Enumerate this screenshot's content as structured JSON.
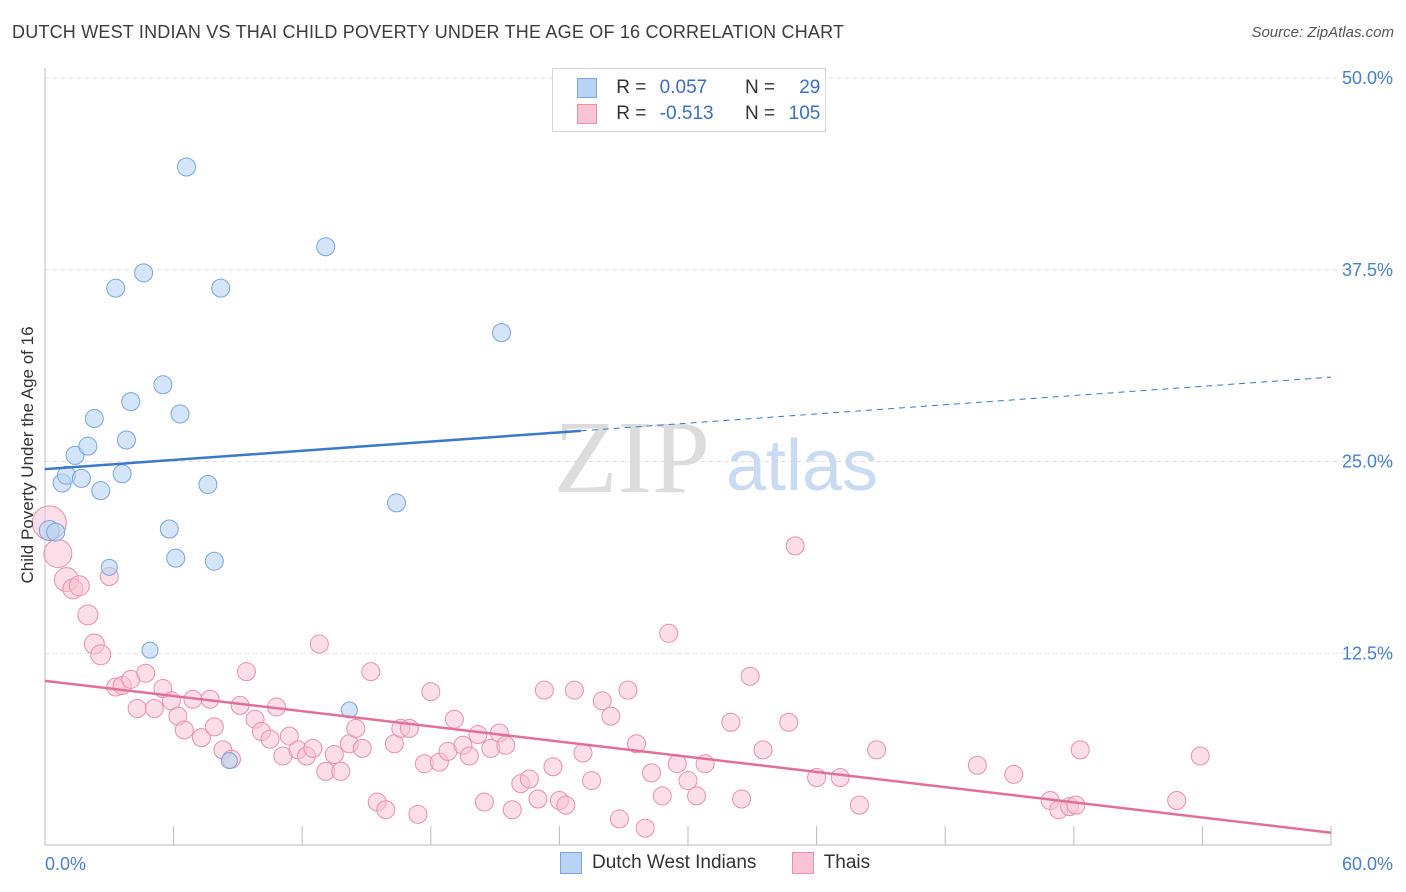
{
  "title": "DUTCH WEST INDIAN VS THAI CHILD POVERTY UNDER THE AGE OF 16 CORRELATION CHART",
  "source": "Source: ZipAtlas.com",
  "watermark": {
    "zip": "ZIP",
    "atlas": "atlas"
  },
  "colors": {
    "blue_fill": "#b8d3f3",
    "blue_stroke": "#7aa5dd",
    "blue_line": "#3a78cc",
    "pink_fill": "#f8c3d3",
    "pink_stroke": "#eb8fae",
    "pink_line": "#e0709a",
    "tick_label": "#4a7fcc",
    "grid": "#dddddd"
  },
  "legend": {
    "rows": [
      {
        "r_label": "R =",
        "r_value": "0.057",
        "n_label": "N =",
        "n_value": "29"
      },
      {
        "r_label": "R =",
        "r_value": "-0.513",
        "n_label": "N =",
        "n_value": "105"
      }
    ]
  },
  "bottom_legend": [
    "Dutch West Indians",
    "Thais"
  ],
  "chart_data": {
    "type": "scatter",
    "title": "DUTCH WEST INDIAN VS THAI CHILD POVERTY UNDER THE AGE OF 16 CORRELATION CHART",
    "xlabel": "",
    "ylabel": "Child Poverty Under the Age of 16",
    "xlim": [
      0,
      60
    ],
    "ylim": [
      0,
      50
    ],
    "x_tick_labels": [
      "0.0%",
      "60.0%"
    ],
    "y_ticks": [
      12.5,
      25.0,
      37.5,
      50.0
    ],
    "y_tick_labels": [
      "12.5%",
      "25.0%",
      "37.5%",
      "50.0%"
    ],
    "series": [
      {
        "name": "Dutch West Indians",
        "r": 0.057,
        "n": 29,
        "trend": {
          "x0": 0,
          "y0": 24.5,
          "x1": 25,
          "y1": 27.0,
          "dash_x1": 60,
          "dash_y1": 30.5
        },
        "points": [
          [
            0.2,
            20.5,
            10
          ],
          [
            0.5,
            20.4,
            9
          ],
          [
            0.8,
            23.6,
            9
          ],
          [
            1.0,
            24.1,
            9
          ],
          [
            1.4,
            25.4,
            9
          ],
          [
            1.7,
            23.9,
            9
          ],
          [
            2.0,
            26.0,
            9
          ],
          [
            2.3,
            27.8,
            9
          ],
          [
            2.6,
            23.1,
            9
          ],
          [
            3.0,
            18.1,
            8
          ],
          [
            3.3,
            36.3,
            9
          ],
          [
            3.6,
            24.2,
            9
          ],
          [
            3.8,
            26.4,
            9
          ],
          [
            4.0,
            28.9,
            9
          ],
          [
            4.6,
            37.3,
            9
          ],
          [
            4.9,
            12.7,
            8
          ],
          [
            5.5,
            30.0,
            9
          ],
          [
            5.8,
            20.6,
            9
          ],
          [
            6.1,
            18.7,
            9
          ],
          [
            6.3,
            28.1,
            9
          ],
          [
            6.6,
            44.2,
            9
          ],
          [
            7.6,
            23.5,
            9
          ],
          [
            7.9,
            18.5,
            9
          ],
          [
            8.2,
            36.3,
            9
          ],
          [
            8.6,
            5.5,
            8
          ],
          [
            13.1,
            39.0,
            9
          ],
          [
            14.2,
            8.8,
            8
          ],
          [
            16.4,
            22.3,
            9
          ],
          [
            21.3,
            33.4,
            9
          ]
        ]
      },
      {
        "name": "Thais",
        "r": -0.513,
        "n": 105,
        "trend": {
          "x0": 0,
          "y0": 10.7,
          "x1": 60,
          "y1": 0.8
        },
        "points": [
          [
            0.2,
            21.0,
            17
          ],
          [
            0.6,
            19.0,
            14
          ],
          [
            1.0,
            17.3,
            12
          ],
          [
            1.3,
            16.7,
            10
          ],
          [
            1.6,
            16.9,
            10
          ],
          [
            2.0,
            15.0,
            10
          ],
          [
            2.3,
            13.1,
            10
          ],
          [
            2.6,
            12.4,
            10
          ],
          [
            3.0,
            17.5,
            9
          ],
          [
            3.3,
            10.3,
            9
          ],
          [
            3.6,
            10.4,
            9
          ],
          [
            4.0,
            10.8,
            9
          ],
          [
            4.3,
            8.9,
            9
          ],
          [
            4.7,
            11.2,
            9
          ],
          [
            5.1,
            8.9,
            9
          ],
          [
            5.5,
            10.2,
            9
          ],
          [
            5.9,
            9.4,
            9
          ],
          [
            6.2,
            8.4,
            9
          ],
          [
            6.5,
            7.5,
            9
          ],
          [
            6.9,
            9.5,
            9
          ],
          [
            7.3,
            7.0,
            9
          ],
          [
            7.7,
            9.5,
            9
          ],
          [
            7.9,
            7.7,
            9
          ],
          [
            8.3,
            6.2,
            9
          ],
          [
            8.7,
            5.6,
            9
          ],
          [
            9.1,
            9.1,
            9
          ],
          [
            9.4,
            11.3,
            9
          ],
          [
            9.8,
            8.2,
            9
          ],
          [
            10.1,
            7.4,
            9
          ],
          [
            10.5,
            6.9,
            9
          ],
          [
            10.8,
            9.0,
            9
          ],
          [
            11.1,
            5.8,
            9
          ],
          [
            11.4,
            7.1,
            9
          ],
          [
            11.8,
            6.2,
            9
          ],
          [
            12.2,
            5.8,
            9
          ],
          [
            12.5,
            6.3,
            9
          ],
          [
            12.8,
            13.1,
            9
          ],
          [
            13.1,
            4.8,
            9
          ],
          [
            13.5,
            5.9,
            9
          ],
          [
            13.8,
            4.8,
            9
          ],
          [
            14.2,
            6.6,
            9
          ],
          [
            14.5,
            7.6,
            9
          ],
          [
            14.8,
            6.3,
            9
          ],
          [
            15.2,
            11.3,
            9
          ],
          [
            15.5,
            2.8,
            9
          ],
          [
            15.9,
            2.3,
            9
          ],
          [
            16.3,
            6.6,
            9
          ],
          [
            16.6,
            7.6,
            9
          ],
          [
            17.0,
            7.6,
            9
          ],
          [
            17.4,
            2.0,
            9
          ],
          [
            17.7,
            5.3,
            9
          ],
          [
            18.0,
            10.0,
            9
          ],
          [
            18.4,
            5.4,
            9
          ],
          [
            18.8,
            6.1,
            9
          ],
          [
            19.1,
            8.2,
            9
          ],
          [
            19.5,
            6.5,
            9
          ],
          [
            19.8,
            5.8,
            9
          ],
          [
            20.2,
            7.2,
            9
          ],
          [
            20.5,
            2.8,
            9
          ],
          [
            20.8,
            6.3,
            9
          ],
          [
            21.2,
            7.3,
            9
          ],
          [
            21.5,
            6.5,
            9
          ],
          [
            21.8,
            2.3,
            9
          ],
          [
            22.2,
            4.0,
            9
          ],
          [
            22.6,
            4.3,
            9
          ],
          [
            23.0,
            3.0,
            9
          ],
          [
            23.3,
            10.1,
            9
          ],
          [
            23.7,
            5.1,
            9
          ],
          [
            24.0,
            2.9,
            9
          ],
          [
            24.3,
            2.6,
            9
          ],
          [
            24.7,
            10.1,
            9
          ],
          [
            25.1,
            6.0,
            9
          ],
          [
            25.5,
            4.2,
            9
          ],
          [
            26.0,
            9.4,
            9
          ],
          [
            26.4,
            8.4,
            9
          ],
          [
            26.8,
            1.7,
            9
          ],
          [
            27.2,
            10.1,
            9
          ],
          [
            27.6,
            6.6,
            9
          ],
          [
            28.0,
            1.1,
            9
          ],
          [
            28.3,
            4.7,
            9
          ],
          [
            28.8,
            3.2,
            9
          ],
          [
            29.1,
            13.8,
            9
          ],
          [
            29.5,
            5.3,
            9
          ],
          [
            30.0,
            4.2,
            9
          ],
          [
            30.4,
            3.2,
            9
          ],
          [
            30.8,
            5.3,
            9
          ],
          [
            32.0,
            8.0,
            9
          ],
          [
            32.5,
            3.0,
            9
          ],
          [
            32.9,
            11.0,
            9
          ],
          [
            33.5,
            6.2,
            9
          ],
          [
            34.7,
            8.0,
            9
          ],
          [
            35.0,
            19.5,
            9
          ],
          [
            36.0,
            4.4,
            9
          ],
          [
            37.1,
            4.4,
            9
          ],
          [
            38.0,
            2.6,
            9
          ],
          [
            38.8,
            6.2,
            9
          ],
          [
            43.5,
            5.2,
            9
          ],
          [
            45.2,
            4.6,
            9
          ],
          [
            46.9,
            2.9,
            9
          ],
          [
            47.3,
            2.3,
            9
          ],
          [
            47.8,
            2.5,
            9
          ],
          [
            48.1,
            2.6,
            9
          ],
          [
            48.3,
            6.2,
            9
          ],
          [
            53.9,
            5.8,
            9
          ],
          [
            52.8,
            2.9,
            9
          ]
        ]
      }
    ]
  }
}
